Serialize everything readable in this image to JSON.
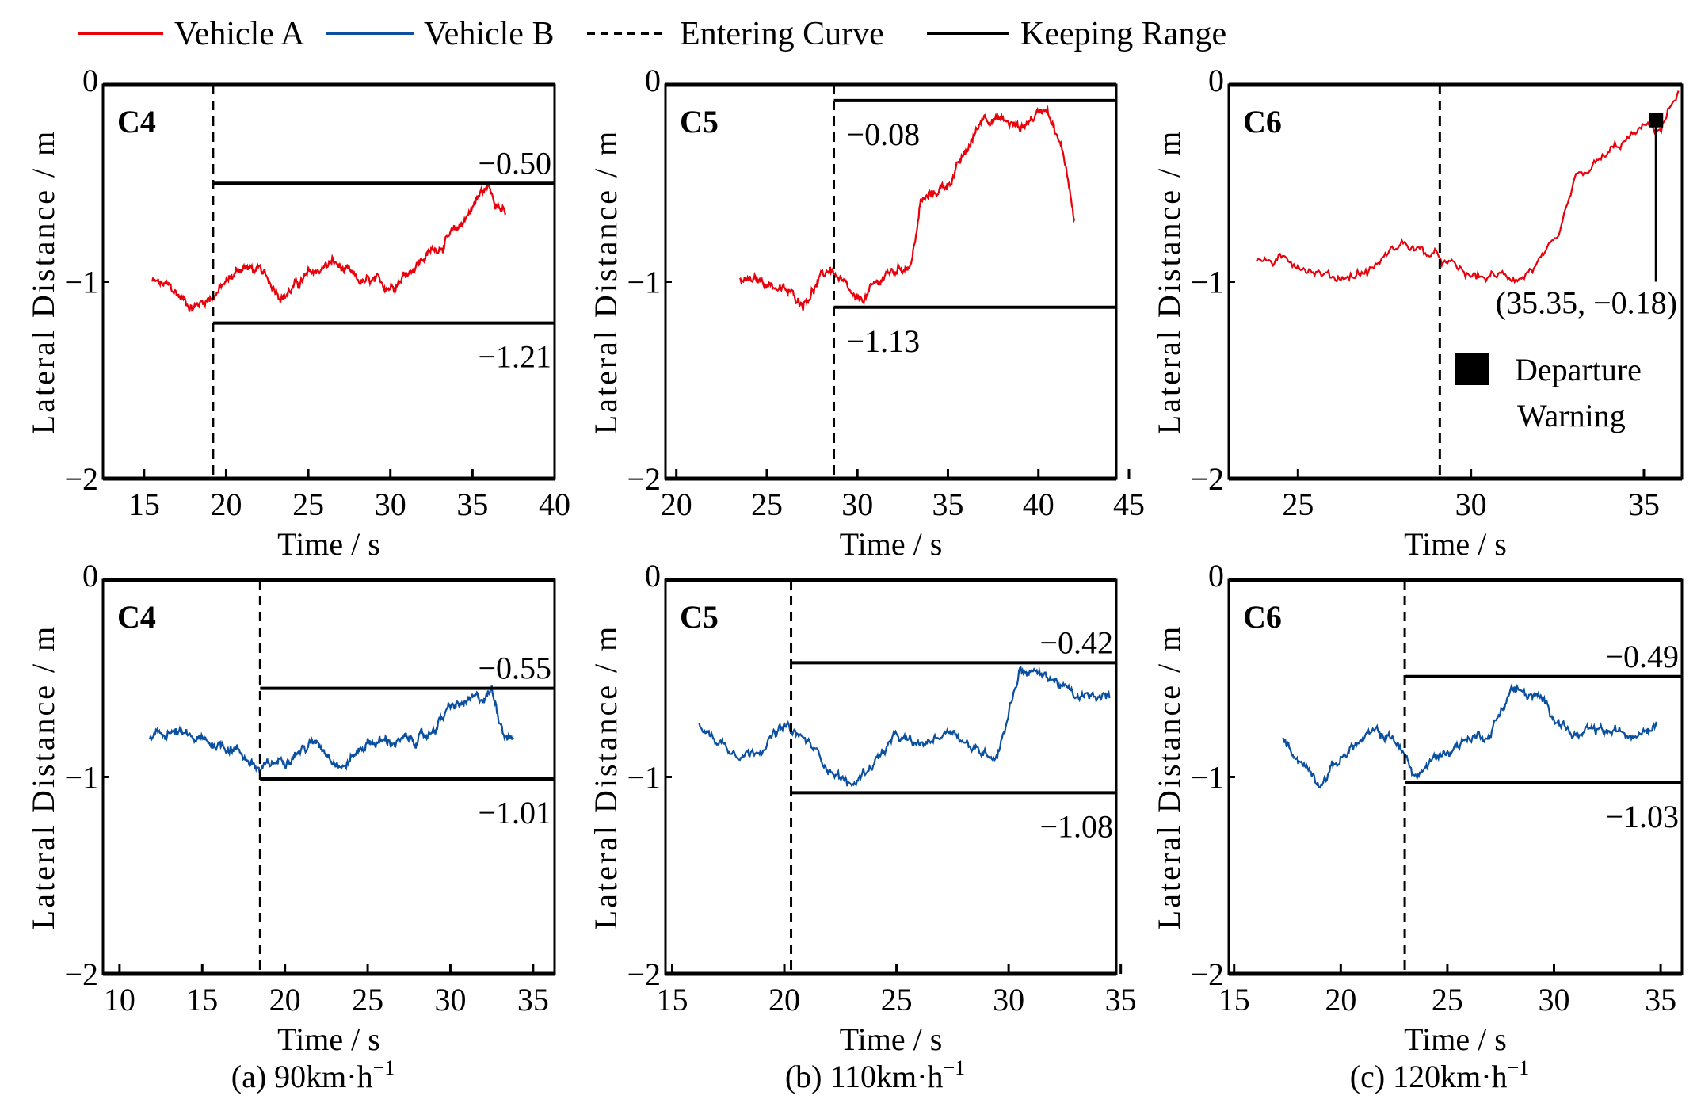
{
  "chart_data": {
    "type": "line",
    "legend": {
      "placement": "top",
      "entries": [
        {
          "label": "Vehicle A",
          "color": "#e8000b",
          "style": "solid"
        },
        {
          "label": "Vehicle B",
          "color": "#0a4fa0",
          "style": "solid"
        },
        {
          "label": "Entering Curve",
          "color": "#000000",
          "style": "dashed"
        },
        {
          "label": "Keeping Range",
          "color": "#000000",
          "style": "solid"
        }
      ]
    },
    "columns": [
      {
        "caption": "(a) 90km·h",
        "caption_sup": "−1"
      },
      {
        "caption": "(b) 110km·h",
        "caption_sup": "−1"
      },
      {
        "caption": "(c) 120km·h",
        "caption_sup": "−1"
      }
    ],
    "panels": [
      {
        "row": 0,
        "col": 0,
        "label": "C4",
        "series": "Vehicle A",
        "xlabel": "Time / s",
        "ylabel": "Lateral Distance / m",
        "xlim": [
          12.5,
          40
        ],
        "ylim": [
          -2,
          0
        ],
        "xticks": [
          15,
          20,
          25,
          30,
          35,
          40
        ],
        "yticks": [
          0,
          -1,
          -2
        ],
        "entering_curve": 19.2,
        "range": {
          "upper": -0.5,
          "lower": -1.21,
          "upper_label": "−0.50",
          "lower_label": "−1.21"
        },
        "points": [
          [
            15.5,
            -1.0
          ],
          [
            16.5,
            -1.03
          ],
          [
            18,
            -1.13
          ],
          [
            19.5,
            -1.05
          ],
          [
            21,
            -0.92
          ],
          [
            22,
            -0.95
          ],
          [
            23.5,
            -1.07
          ],
          [
            25,
            -0.97
          ],
          [
            26.5,
            -0.9
          ],
          [
            28,
            -1.0
          ],
          [
            30,
            -1.02
          ],
          [
            32,
            -0.88
          ],
          [
            34,
            -0.75
          ],
          [
            35.5,
            -0.55
          ],
          [
            36,
            -0.52
          ],
          [
            37,
            -0.66
          ]
        ]
      },
      {
        "row": 0,
        "col": 1,
        "label": "C5",
        "series": "Vehicle A",
        "xlabel": "Time / s",
        "ylabel": "Lateral Distance / m",
        "xlim": [
          19.4,
          44.3
        ],
        "ylim": [
          -2,
          0
        ],
        "xticks": [
          20,
          25,
          30,
          35,
          40,
          45
        ],
        "yticks": [
          0,
          -1,
          -2
        ],
        "entering_curve": 28.7,
        "range": {
          "upper": -0.08,
          "lower": -1.13,
          "upper_label": "−0.08",
          "lower_label": "−1.13"
        },
        "points": [
          [
            23.5,
            -1.0
          ],
          [
            25,
            -1.0
          ],
          [
            27,
            -1.1
          ],
          [
            28.5,
            -0.93
          ],
          [
            30,
            -1.12
          ],
          [
            31.5,
            -0.97
          ],
          [
            33,
            -0.9
          ],
          [
            33.5,
            -0.6
          ],
          [
            35,
            -0.5
          ],
          [
            36,
            -0.35
          ],
          [
            37,
            -0.15
          ],
          [
            38,
            -0.18
          ],
          [
            39,
            -0.22
          ],
          [
            40.5,
            -0.1
          ],
          [
            41.5,
            -0.4
          ],
          [
            42,
            -0.68
          ]
        ]
      },
      {
        "row": 0,
        "col": 2,
        "label": "C6",
        "series": "Vehicle A",
        "xlabel": "Time / s",
        "ylabel": "Lateral Distance / m",
        "xlim": [
          23,
          36.1
        ],
        "ylim": [
          -2,
          0
        ],
        "xticks": [
          25,
          30,
          35
        ],
        "yticks": [
          0,
          -1,
          -2
        ],
        "entering_curve": 29.1,
        "range": null,
        "warning": {
          "x": 35.35,
          "y": -0.18,
          "label": "(35.35, −0.18)",
          "legend_line1": "Departure",
          "legend_line2": "Warning"
        },
        "points": [
          [
            23.8,
            -0.9
          ],
          [
            25,
            -0.9
          ],
          [
            26,
            -0.98
          ],
          [
            27,
            -0.95
          ],
          [
            28,
            -0.8
          ],
          [
            29,
            -0.88
          ],
          [
            30,
            -0.98
          ],
          [
            31.5,
            -0.97
          ],
          [
            32.5,
            -0.82
          ],
          [
            33,
            -0.5
          ],
          [
            34,
            -0.35
          ],
          [
            35,
            -0.22
          ],
          [
            35.5,
            -0.22
          ],
          [
            36,
            -0.03
          ]
        ]
      },
      {
        "row": 1,
        "col": 0,
        "label": "C4",
        "series": "Vehicle B",
        "xlabel": "Time / s",
        "ylabel": "Lateral Distance / m",
        "xlim": [
          9,
          36.3
        ],
        "ylim": [
          -2,
          0
        ],
        "xticks": [
          10,
          15,
          20,
          25,
          30,
          35
        ],
        "yticks": [
          0,
          -1,
          -2
        ],
        "entering_curve": 18.5,
        "range": {
          "upper": -0.55,
          "lower": -1.01,
          "upper_label": "−0.55",
          "lower_label": "−1.01"
        },
        "points": [
          [
            11.8,
            -0.82
          ],
          [
            13,
            -0.77
          ],
          [
            15,
            -0.82
          ],
          [
            17,
            -0.85
          ],
          [
            18.5,
            -0.97
          ],
          [
            20,
            -0.9
          ],
          [
            22,
            -0.82
          ],
          [
            23.5,
            -0.95
          ],
          [
            25,
            -0.82
          ],
          [
            27,
            -0.82
          ],
          [
            28.5,
            -0.8
          ],
          [
            30,
            -0.65
          ],
          [
            32,
            -0.6
          ],
          [
            32.5,
            -0.56
          ],
          [
            33.2,
            -0.76
          ],
          [
            33.8,
            -0.8
          ]
        ]
      },
      {
        "row": 1,
        "col": 1,
        "label": "C5",
        "series": "Vehicle B",
        "xlabel": "Time / s",
        "ylabel": "Lateral Distance / m",
        "xlim": [
          14.7,
          34.8
        ],
        "ylim": [
          -2,
          0
        ],
        "xticks": [
          15,
          20,
          25,
          30,
          35
        ],
        "yticks": [
          0,
          -1,
          -2
        ],
        "entering_curve": 20.3,
        "range": {
          "upper": -0.42,
          "lower": -1.08,
          "upper_label": "−0.42",
          "lower_label": "−1.08"
        },
        "points": [
          [
            16.2,
            -0.75
          ],
          [
            17.5,
            -0.85
          ],
          [
            18.5,
            -0.88
          ],
          [
            20,
            -0.75
          ],
          [
            21,
            -0.82
          ],
          [
            22,
            -0.95
          ],
          [
            23,
            -1.05
          ],
          [
            24,
            -0.92
          ],
          [
            25,
            -0.8
          ],
          [
            26,
            -0.85
          ],
          [
            27.5,
            -0.75
          ],
          [
            28.5,
            -0.87
          ],
          [
            29.5,
            -0.88
          ],
          [
            30.5,
            -0.45
          ],
          [
            32,
            -0.5
          ],
          [
            33,
            -0.6
          ],
          [
            34.5,
            -0.6
          ]
        ]
      },
      {
        "row": 1,
        "col": 2,
        "label": "C6",
        "series": "Vehicle B",
        "xlabel": "Time / s",
        "ylabel": "Lateral Distance / m",
        "xlim": [
          14.75,
          36
        ],
        "ylim": [
          -2,
          0
        ],
        "xticks": [
          15,
          20,
          25,
          30,
          35
        ],
        "yticks": [
          0,
          -1,
          -2
        ],
        "entering_curve": 23.0,
        "range": {
          "upper": -0.49,
          "lower": -1.03,
          "upper_label": "−0.49",
          "lower_label": "−1.03"
        },
        "points": [
          [
            17.3,
            -0.8
          ],
          [
            18,
            -0.9
          ],
          [
            19,
            -1.02
          ],
          [
            20.5,
            -0.85
          ],
          [
            21.5,
            -0.78
          ],
          [
            22.5,
            -0.8
          ],
          [
            23.5,
            -1.0
          ],
          [
            24.5,
            -0.9
          ],
          [
            26,
            -0.8
          ],
          [
            27,
            -0.78
          ],
          [
            28,
            -0.55
          ],
          [
            29.5,
            -0.62
          ],
          [
            31,
            -0.8
          ],
          [
            32,
            -0.77
          ],
          [
            33.5,
            -0.78
          ],
          [
            34.8,
            -0.72
          ]
        ]
      }
    ]
  }
}
